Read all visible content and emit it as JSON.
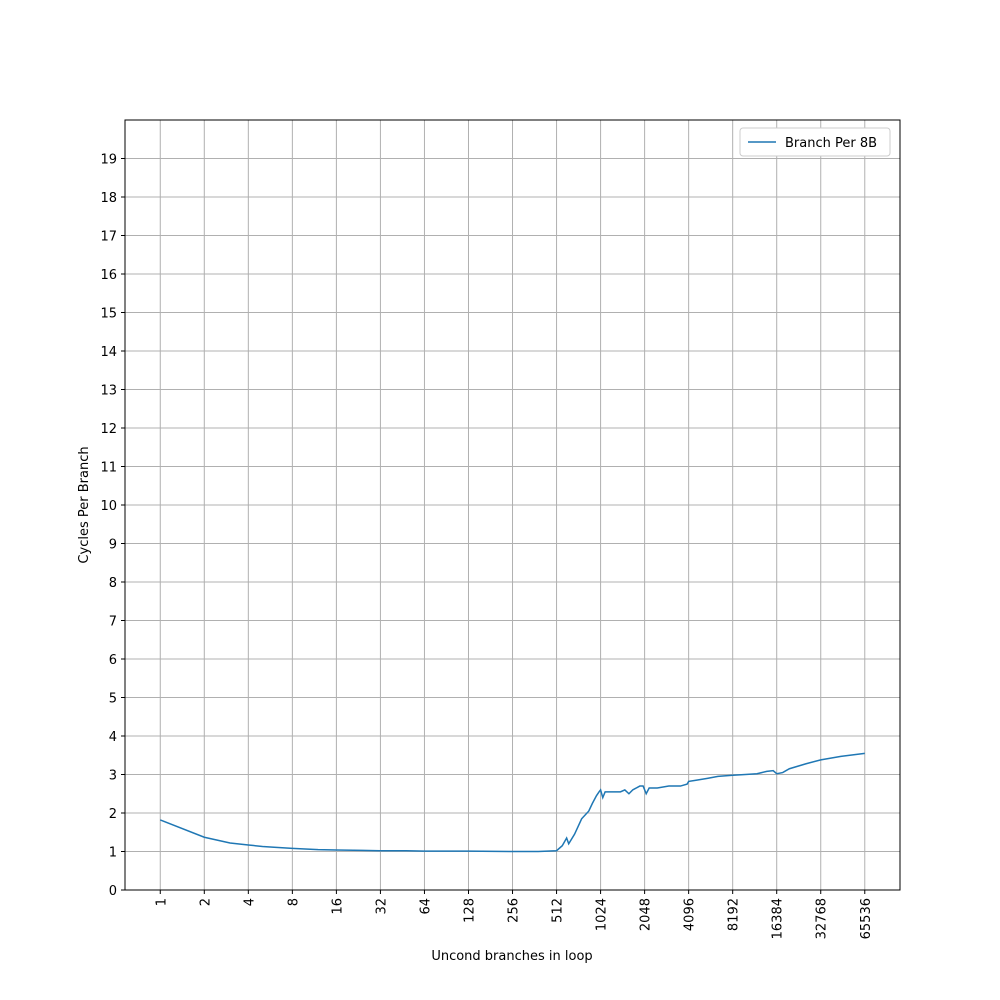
{
  "chart_data": {
    "type": "line",
    "xlabel": "Uncond branches in loop",
    "ylabel": "Cycles Per Branch",
    "x": [
      1,
      2,
      3,
      4,
      5,
      6,
      8,
      12,
      16,
      24,
      32,
      48,
      64,
      128,
      256,
      384,
      512,
      560,
      600,
      620,
      680,
      760,
      850,
      900,
      960,
      1000,
      1024,
      1060,
      1100,
      1200,
      1400,
      1500,
      1600,
      1700,
      1900,
      2000,
      2100,
      2200,
      2500,
      3000,
      3600,
      4000,
      4096,
      4600,
      5500,
      6500,
      8192,
      10000,
      12000,
      14000,
      15500,
      16384,
      18000,
      20000,
      26000,
      32768,
      45000,
      65536
    ],
    "series": [
      {
        "name": "Branch Per 8B",
        "color": "#1f77b4",
        "values": [
          1.82,
          1.37,
          1.22,
          1.17,
          1.13,
          1.11,
          1.08,
          1.05,
          1.04,
          1.03,
          1.02,
          1.02,
          1.01,
          1.01,
          1.0,
          1.0,
          1.02,
          1.15,
          1.35,
          1.2,
          1.45,
          1.85,
          2.05,
          2.25,
          2.45,
          2.55,
          2.6,
          2.4,
          2.55,
          2.55,
          2.55,
          2.6,
          2.5,
          2.6,
          2.7,
          2.7,
          2.5,
          2.65,
          2.65,
          2.7,
          2.7,
          2.75,
          2.82,
          2.85,
          2.9,
          2.95,
          2.98,
          3.0,
          3.02,
          3.08,
          3.1,
          3.02,
          3.05,
          3.15,
          3.28,
          3.38,
          3.47,
          3.55
        ]
      }
    ],
    "xscale": "log",
    "xlim": [
      0.574,
      114105
    ],
    "xticks": [
      1,
      2,
      4,
      8,
      16,
      32,
      64,
      128,
      256,
      512,
      1024,
      2048,
      4096,
      8192,
      16384,
      32768,
      65536
    ],
    "ylim": [
      0,
      20
    ],
    "yticks": [
      0,
      1,
      2,
      3,
      4,
      5,
      6,
      7,
      8,
      9,
      10,
      11,
      12,
      13,
      14,
      15,
      16,
      17,
      18,
      19
    ],
    "grid": true,
    "legend": "upper right"
  }
}
